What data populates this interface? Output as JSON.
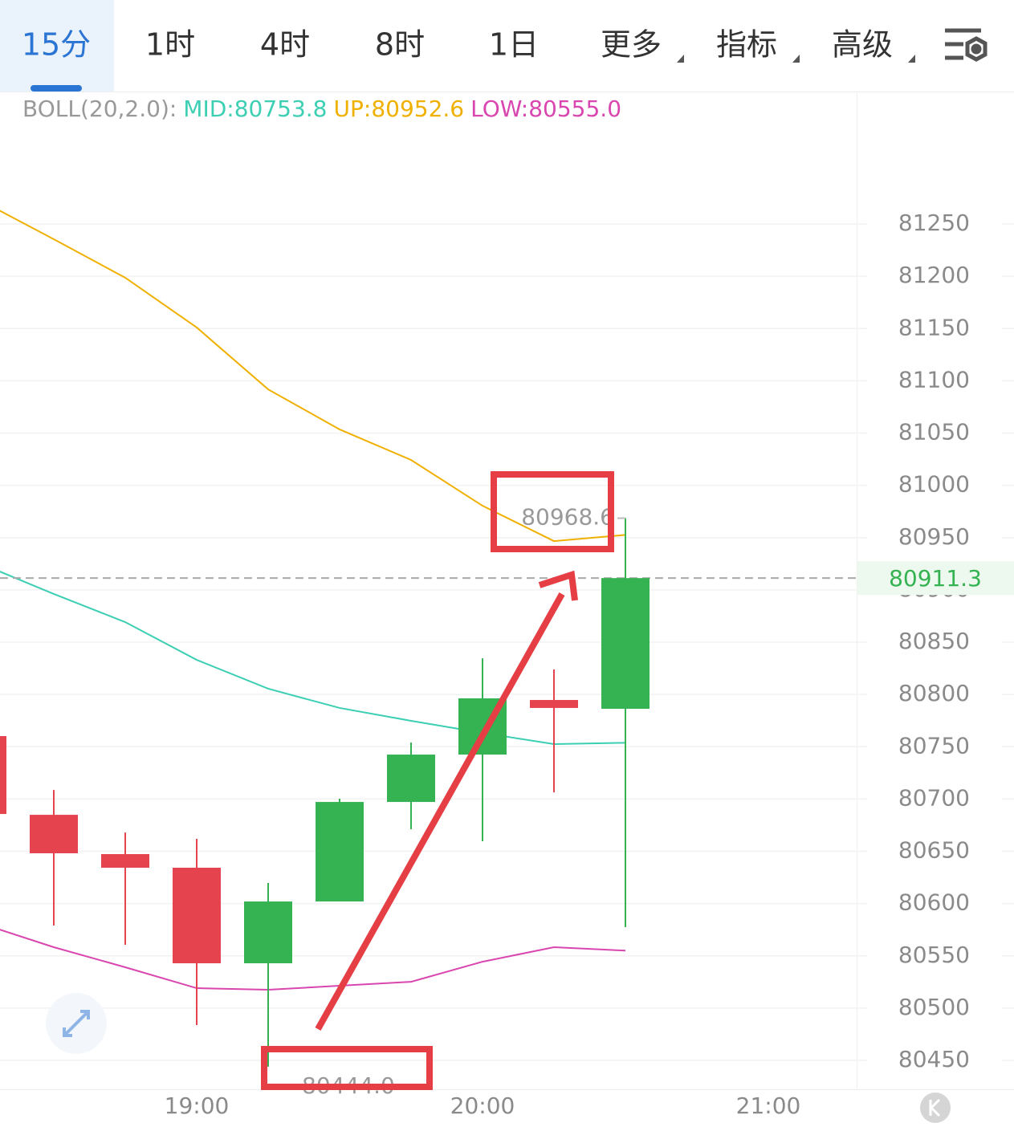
{
  "tabs": [
    "15分",
    "1时",
    "4时",
    "8时",
    "1日",
    "更多",
    "指标",
    "高级"
  ],
  "active_tab": 0,
  "chart_data": {
    "type": "candlestick",
    "categories": [
      null,
      null,
      null,
      "19:00",
      null,
      null,
      null,
      "20:00",
      null,
      null,
      null,
      "21:00",
      null
    ],
    "ohlc": {
      "open": [
        80760.2,
        80684.9,
        80647.3,
        80634.3,
        80542.9,
        80602.0,
        80697.2,
        80742.5,
        80794.7,
        80786.3,
        null,
        null,
        null
      ],
      "high": [
        80760.2,
        80708.7,
        80668.0,
        80661.9,
        80619.7,
        80700.3,
        80754.0,
        80834.6,
        80823.9,
        80968.6,
        null,
        null,
        null
      ],
      "low": [
        80685.7,
        80579.0,
        80560.6,
        80483.8,
        80444.0,
        80602.0,
        80671.1,
        80659.6,
        80706.4,
        80577.5,
        null,
        null,
        null
      ],
      "close": [
        80685.7,
        80648.1,
        80634.3,
        80542.9,
        80602.0,
        80697.2,
        80742.5,
        80796.3,
        80787.1,
        80911.3,
        null,
        null,
        null
      ]
    },
    "up_color": "#35b352",
    "down_color": "#e5434e",
    "indicator": {
      "label": "BOLL(20,2.0):",
      "series": [
        {
          "label": "MID:80753.8",
          "color": "#3ccfb3",
          "values": [
            80924.5,
            80896.1,
            80869.2,
            80833.1,
            80805.5,
            80787.1,
            80774.8,
            80763.3,
            80752.5,
            80753.8,
            null,
            null,
            null
          ]
        },
        {
          "label": "UP:80952.6",
          "color": "#f0b000",
          "values": [
            81271.5,
            81235.4,
            81198.6,
            81151.0,
            81091.8,
            81053.5,
            81024.3,
            80980.5,
            80946.7,
            80952.6,
            null,
            null,
            null
          ]
        },
        {
          "label": "LOW:80555.0",
          "color": "#d946b0",
          "values": [
            80580.5,
            80558.3,
            80539.1,
            80519.1,
            80517.6,
            80521.4,
            80525.2,
            80544.4,
            80558.3,
            80555.0,
            null,
            null,
            null
          ]
        }
      ]
    },
    "ylim": [
      80422.4,
      81375.9
    ],
    "yticks": [
      80450,
      80500,
      80550,
      80600,
      80650,
      80700,
      80750,
      80800,
      80850,
      80900,
      80950,
      81000,
      81050,
      81100,
      81150,
      81200,
      81250
    ],
    "grid": true,
    "annotations": {
      "high_label": "80968.6",
      "low_label": "80444.0",
      "last_price_label": "80911.3"
    }
  }
}
